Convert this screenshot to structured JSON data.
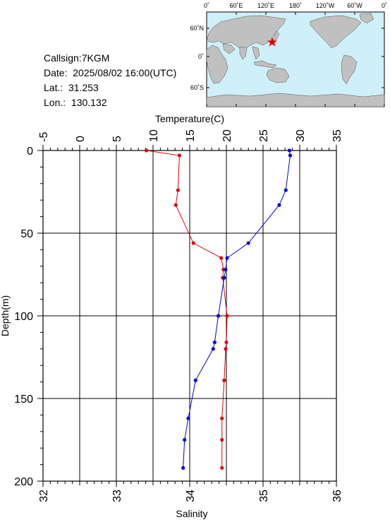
{
  "info": {
    "callsign": "Callsign:7KGM",
    "date": "Date:  2025/08/02 16:00(UTC)",
    "lat": "Lat.:  31.253",
    "lon": "Lon.:  130.132"
  },
  "map": {
    "top_labels": [
      "0˚",
      "60˚E",
      "120˚E",
      "180˚",
      "120˚W",
      "60˚W",
      "0˚"
    ],
    "left_labels": [
      "60˚N",
      "0˚",
      "60˚S"
    ],
    "ocean_color": "#cfeff9",
    "land_color": "#c0c0c0",
    "marker_color": "#e00000"
  },
  "chart_data": {
    "type": "line",
    "xlabel_top": "Temperature(C)",
    "xlabel_bottom": "Salinity",
    "ylabel": "Depth(m)",
    "temperature_range": [
      -5,
      35
    ],
    "temperature_ticks": [
      "-5",
      "0",
      "5",
      "10",
      "15",
      "20",
      "25",
      "30",
      "35"
    ],
    "salinity_range": [
      32,
      36
    ],
    "salinity_ticks": [
      "32",
      "33",
      "34",
      "35",
      "36"
    ],
    "depth_range": [
      0,
      200
    ],
    "depth_ticks": [
      "0",
      "50",
      "100",
      "150",
      "200"
    ],
    "temperature_color": "#e00000",
    "salinity_color": "#0000e0",
    "temperature": {
      "depth": [
        0,
        3,
        24,
        33,
        56,
        65,
        72,
        77,
        100,
        116,
        120,
        139,
        162,
        175,
        192
      ],
      "value": [
        9.1,
        13.6,
        13.4,
        13.1,
        15.5,
        19.3,
        19.6,
        19.5,
        20.1,
        20.0,
        19.9,
        19.7,
        19.4,
        19.4,
        19.4
      ]
    },
    "salinity": {
      "depth": [
        0,
        3,
        24,
        33,
        56,
        65,
        72,
        77,
        100,
        116,
        120,
        139,
        162,
        175,
        192
      ],
      "value": [
        35.36,
        35.37,
        35.31,
        35.22,
        34.8,
        34.51,
        34.49,
        34.47,
        34.39,
        34.34,
        34.32,
        34.08,
        33.98,
        33.93,
        33.91
      ]
    }
  }
}
